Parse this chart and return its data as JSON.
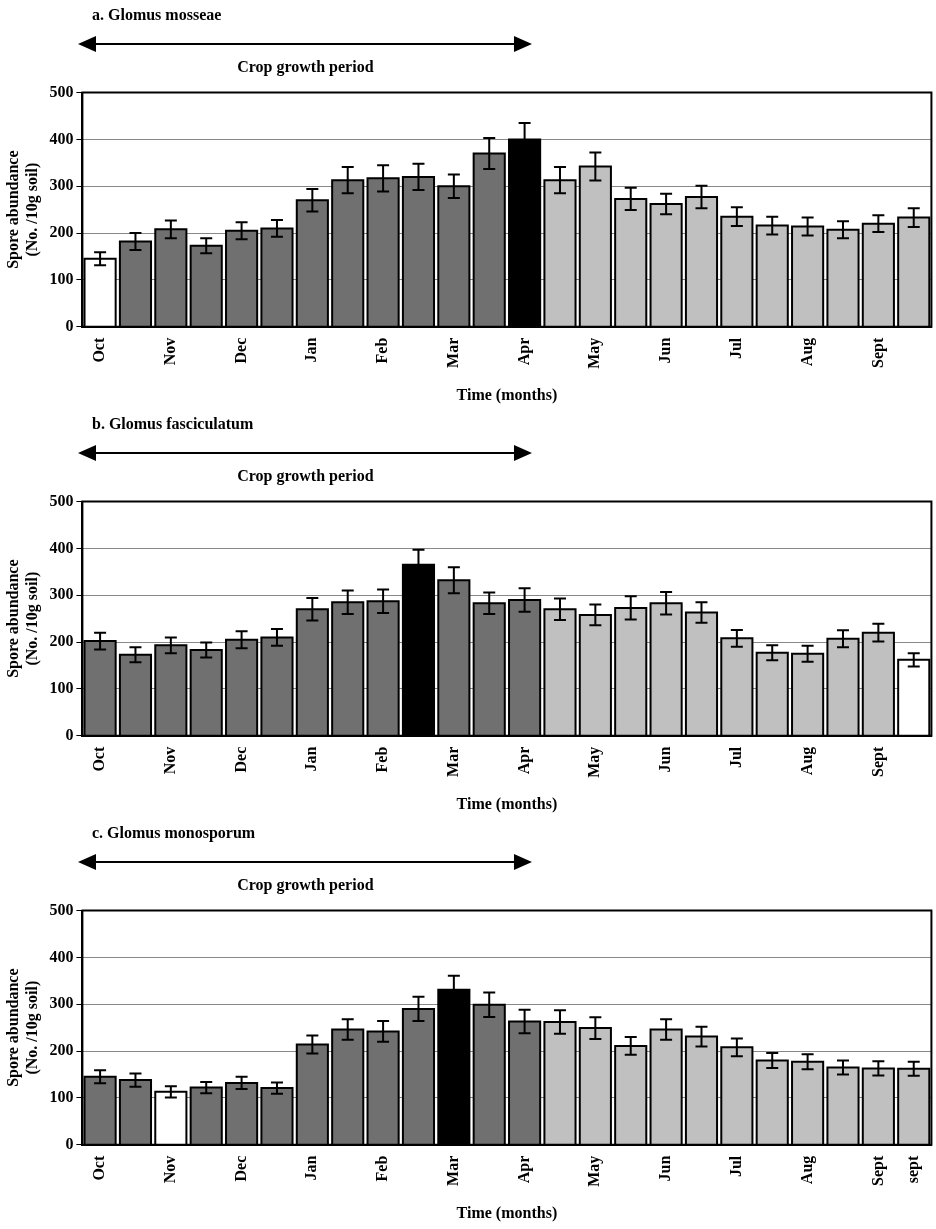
{
  "chart_data": [
    {
      "type": "bar",
      "title": "a. Glomus mosseae",
      "xlabel": "Time (months)",
      "ylabel": "Spore abundance\n(No. /10g soil)",
      "annotations": [
        "Crop growth period"
      ],
      "categories": [
        "Oct",
        null,
        "Nov",
        null,
        "Dec",
        null,
        "Jan",
        null,
        "Feb",
        null,
        "Mar",
        null,
        "Apr",
        null,
        "May",
        null,
        "Jun",
        null,
        "Jul",
        null,
        "Aug",
        null,
        "Sept",
        null
      ],
      "values": [
        145,
        182,
        208,
        173,
        205,
        210,
        270,
        313,
        317,
        320,
        300,
        370,
        400,
        313,
        342,
        273,
        262,
        277,
        235,
        216,
        214,
        207,
        220,
        233
      ],
      "errors": [
        14,
        18,
        19,
        16,
        18,
        18,
        24,
        28,
        28,
        28,
        25,
        33,
        35,
        28,
        30,
        24,
        22,
        24,
        20,
        19,
        19,
        18,
        18,
        20
      ],
      "colors": [
        "#ffffff",
        "#707070",
        "#707070",
        "#707070",
        "#707070",
        "#707070",
        "#707070",
        "#707070",
        "#707070",
        "#707070",
        "#707070",
        "#707070",
        "#000000",
        "#c0c0c0",
        "#c0c0c0",
        "#c0c0c0",
        "#c0c0c0",
        "#c0c0c0",
        "#c0c0c0",
        "#c0c0c0",
        "#c0c0c0",
        "#c0c0c0",
        "#c0c0c0",
        "#c0c0c0"
      ],
      "ylim": [
        0,
        500
      ],
      "yticks": [
        0,
        100,
        200,
        300,
        400,
        500
      ],
      "grid": "y"
    },
    {
      "type": "bar",
      "title": "b. Glomus fasciculatum",
      "xlabel": "Time (months)",
      "ylabel": "Spore abundance\n(No. /10g soil)",
      "annotations": [
        "Crop growth period"
      ],
      "categories": [
        "Oct",
        null,
        "Nov",
        null,
        "Dec",
        null,
        "Jan",
        null,
        "Feb",
        null,
        "Mar",
        null,
        "Apr",
        null,
        "May",
        null,
        "Jun",
        null,
        "Jul",
        null,
        "Aug",
        null,
        "Sept",
        null
      ],
      "values": [
        202,
        173,
        193,
        183,
        205,
        210,
        270,
        285,
        287,
        365,
        332,
        283,
        290,
        270,
        258,
        273,
        283,
        263,
        208,
        177,
        175,
        207,
        220,
        162
      ],
      "errors": [
        18,
        16,
        17,
        16,
        18,
        18,
        24,
        25,
        25,
        32,
        28,
        23,
        25,
        23,
        22,
        25,
        24,
        22,
        18,
        16,
        17,
        18,
        19,
        14
      ],
      "colors": [
        "#707070",
        "#707070",
        "#707070",
        "#707070",
        "#707070",
        "#707070",
        "#707070",
        "#707070",
        "#707070",
        "#000000",
        "#707070",
        "#707070",
        "#707070",
        "#c0c0c0",
        "#c0c0c0",
        "#c0c0c0",
        "#c0c0c0",
        "#c0c0c0",
        "#c0c0c0",
        "#c0c0c0",
        "#c0c0c0",
        "#c0c0c0",
        "#c0c0c0",
        "#ffffff"
      ],
      "ylim": [
        0,
        500
      ],
      "yticks": [
        0,
        100,
        200,
        300,
        400,
        500
      ],
      "grid": "y"
    },
    {
      "type": "bar",
      "title": "c. Glomus monosporum",
      "xlabel": "Time (months)",
      "ylabel": "Spore abundance\n(No. /10g soil)",
      "annotations": [
        "Crop growth period"
      ],
      "categories": [
        "Oct",
        null,
        "Nov",
        null,
        "Dec",
        null,
        "Jan",
        null,
        "Feb",
        null,
        "Mar",
        null,
        "Apr",
        null,
        "May",
        null,
        "Jun",
        null,
        "Jul",
        null,
        "Aug",
        null,
        "Sept",
        "sept"
      ],
      "values": [
        145,
        138,
        113,
        122,
        132,
        121,
        214,
        246,
        242,
        290,
        331,
        299,
        263,
        262,
        249,
        211,
        246,
        231,
        208,
        180,
        177,
        165,
        163,
        162
      ],
      "errors": [
        14,
        14,
        12,
        12,
        13,
        12,
        19,
        22,
        22,
        26,
        30,
        26,
        25,
        25,
        23,
        19,
        22,
        21,
        19,
        16,
        16,
        15,
        15,
        15
      ],
      "colors": [
        "#707070",
        "#707070",
        "#ffffff",
        "#707070",
        "#707070",
        "#707070",
        "#707070",
        "#707070",
        "#707070",
        "#707070",
        "#000000",
        "#707070",
        "#707070",
        "#c0c0c0",
        "#c0c0c0",
        "#c0c0c0",
        "#c0c0c0",
        "#c0c0c0",
        "#c0c0c0",
        "#c0c0c0",
        "#c0c0c0",
        "#c0c0c0",
        "#c0c0c0",
        "#c0c0c0"
      ],
      "ylim": [
        0,
        500
      ],
      "yticks": [
        0,
        100,
        200,
        300,
        400,
        500
      ],
      "grid": "y"
    }
  ]
}
